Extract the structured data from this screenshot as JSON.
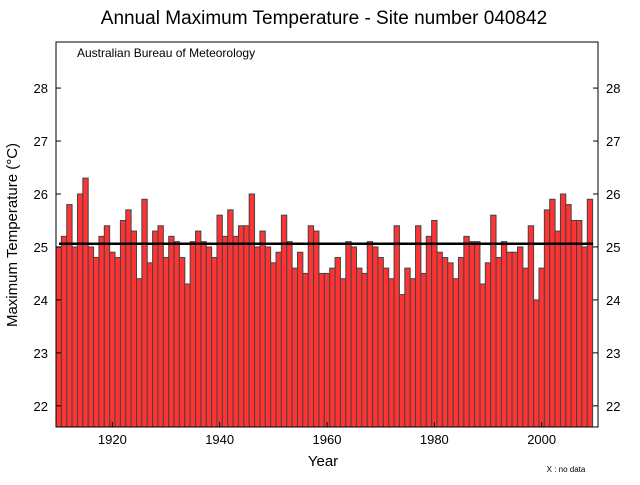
{
  "chart_data": {
    "type": "bar",
    "title": "Annual Maximum Temperature  -  Site number 040842",
    "annotation": "Australian Bureau of Meteorology",
    "xlabel": "Year",
    "ylabel": "Maximum Temperature (°C)",
    "footnote": "X : no  data",
    "xlim": [
      1909.5,
      2010.5
    ],
    "ylim": [
      21.6,
      28.87
    ],
    "xticks": [
      1920,
      1940,
      1960,
      1980,
      2000
    ],
    "yticks": [
      22,
      23,
      24,
      25,
      26,
      27,
      28
    ],
    "grid": false,
    "bar_color": "#ff3333",
    "bar_edge_color": "#444444",
    "mean_line": 25.06,
    "x": [
      1910,
      1911,
      1912,
      1913,
      1914,
      1915,
      1916,
      1917,
      1918,
      1919,
      1920,
      1921,
      1922,
      1923,
      1924,
      1925,
      1926,
      1927,
      1928,
      1929,
      1930,
      1931,
      1932,
      1933,
      1934,
      1935,
      1936,
      1937,
      1938,
      1939,
      1940,
      1941,
      1942,
      1943,
      1944,
      1945,
      1946,
      1947,
      1948,
      1949,
      1950,
      1951,
      1952,
      1953,
      1954,
      1955,
      1956,
      1957,
      1958,
      1959,
      1960,
      1961,
      1962,
      1963,
      1964,
      1965,
      1966,
      1967,
      1968,
      1969,
      1970,
      1971,
      1972,
      1973,
      1974,
      1975,
      1976,
      1977,
      1978,
      1979,
      1980,
      1981,
      1982,
      1983,
      1984,
      1985,
      1986,
      1987,
      1988,
      1989,
      1990,
      1991,
      1992,
      1993,
      1994,
      1995,
      1996,
      1997,
      1998,
      1999,
      2000,
      2001,
      2002,
      2003,
      2004,
      2005,
      2006,
      2007,
      2008,
      2009
    ],
    "values": [
      25.0,
      25.2,
      25.8,
      25.0,
      26.0,
      26.3,
      25.0,
      24.8,
      25.2,
      25.4,
      24.9,
      24.8,
      25.5,
      25.7,
      25.3,
      24.4,
      25.9,
      24.7,
      25.3,
      25.4,
      24.8,
      25.2,
      25.1,
      24.8,
      24.3,
      25.1,
      25.3,
      25.1,
      25.0,
      24.8,
      25.6,
      25.2,
      25.7,
      25.2,
      25.4,
      25.4,
      26.0,
      25.0,
      25.3,
      25.0,
      24.7,
      24.9,
      25.6,
      25.1,
      24.6,
      24.9,
      24.5,
      25.4,
      25.3,
      24.5,
      24.5,
      24.6,
      24.8,
      24.4,
      25.1,
      25.0,
      24.6,
      24.5,
      25.1,
      25.0,
      24.8,
      24.6,
      24.4,
      25.4,
      24.1,
      24.6,
      24.4,
      25.4,
      24.5,
      25.2,
      25.5,
      24.9,
      24.8,
      24.7,
      24.4,
      24.8,
      25.2,
      25.1,
      25.1,
      24.3,
      24.7,
      25.6,
      24.8,
      25.1,
      24.9,
      24.9,
      25.0,
      24.6,
      25.4,
      24.0,
      24.6,
      25.7,
      25.9,
      25.3,
      26.0,
      25.8,
      25.5,
      25.5,
      25.0,
      25.9
    ]
  }
}
